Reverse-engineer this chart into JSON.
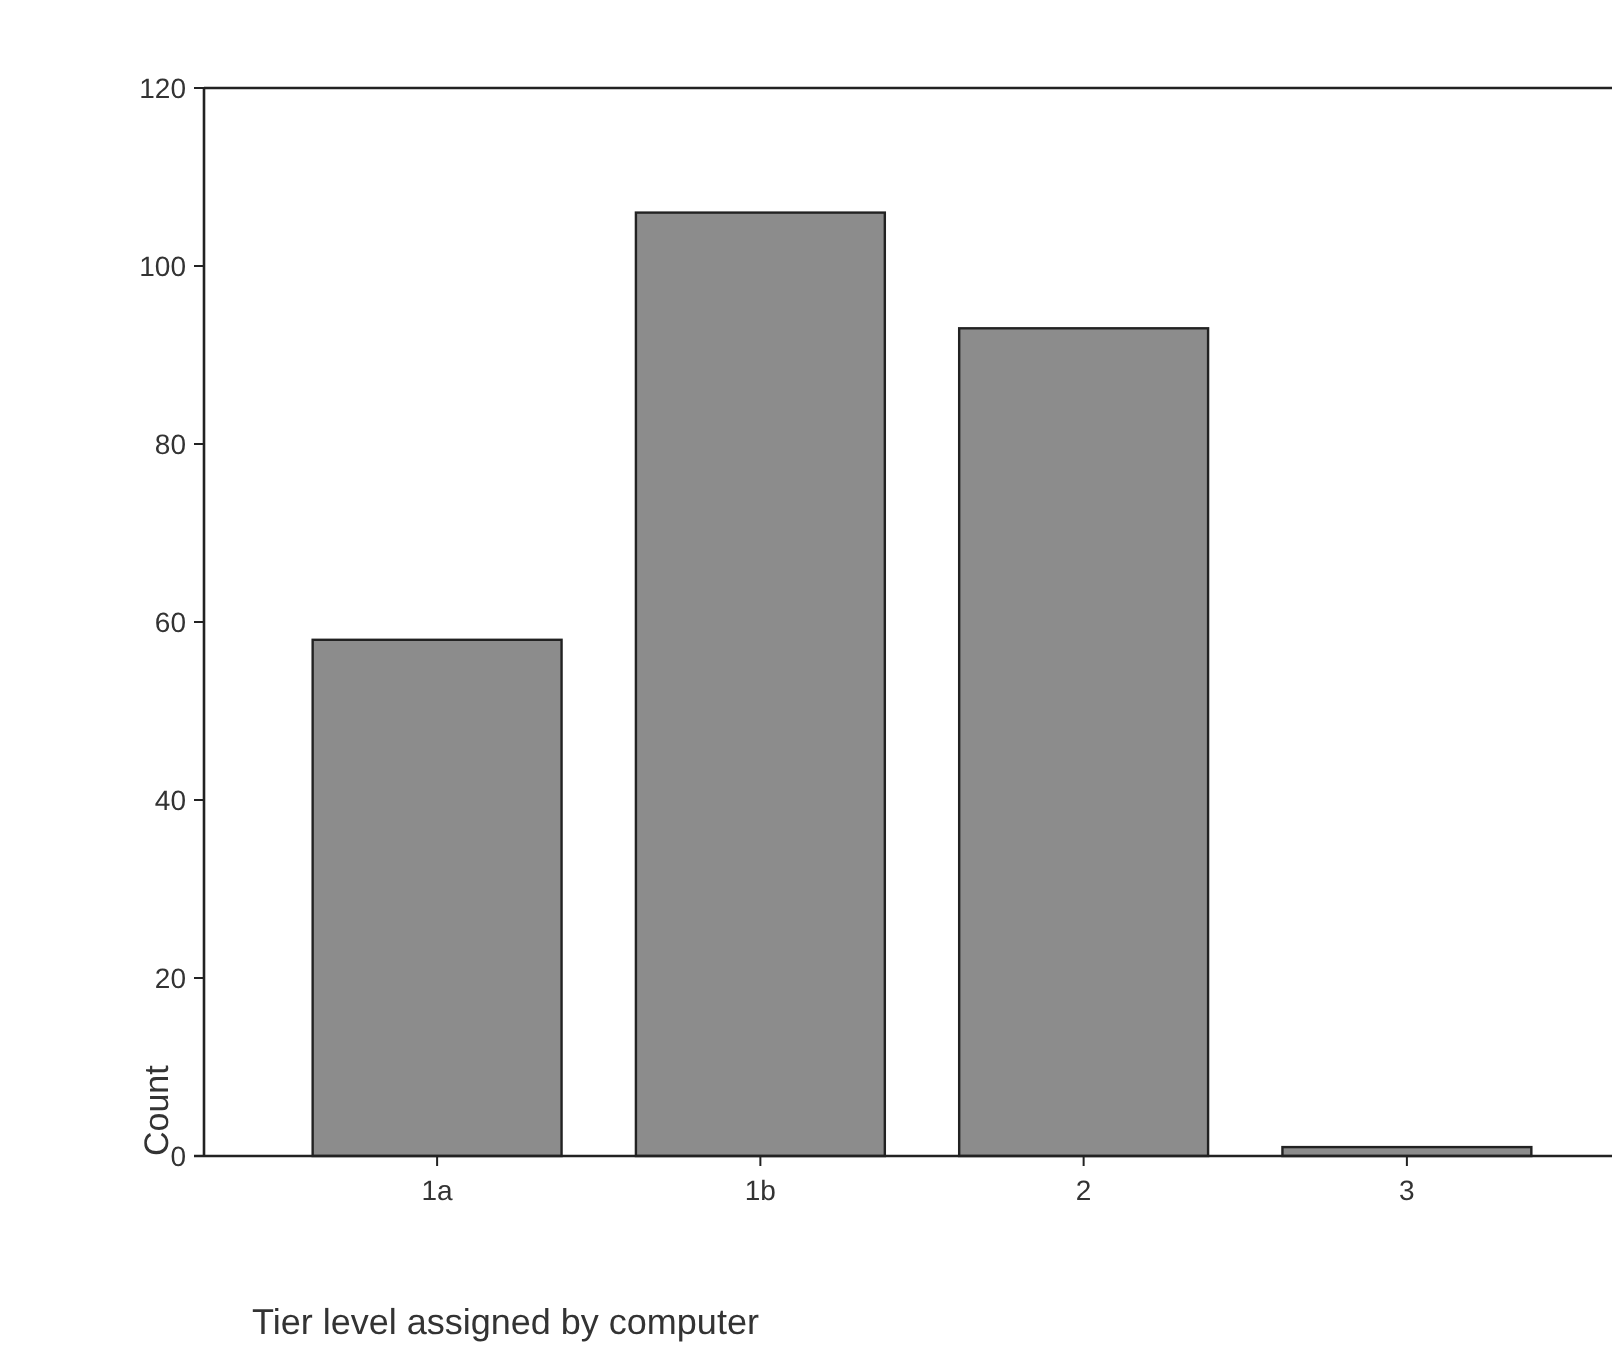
{
  "chart_data": {
    "type": "bar",
    "xlabel": "Tier level assigned by computer",
    "ylabel": "Count",
    "categories": [
      "1a",
      "1b",
      "2",
      "3"
    ],
    "values": [
      58,
      106,
      93,
      1
    ],
    "color": "#8c8c8c",
    "ylim": [
      0,
      120
    ],
    "yticks": [
      0,
      20,
      40,
      60,
      80,
      100,
      120
    ],
    "grid": false
  }
}
